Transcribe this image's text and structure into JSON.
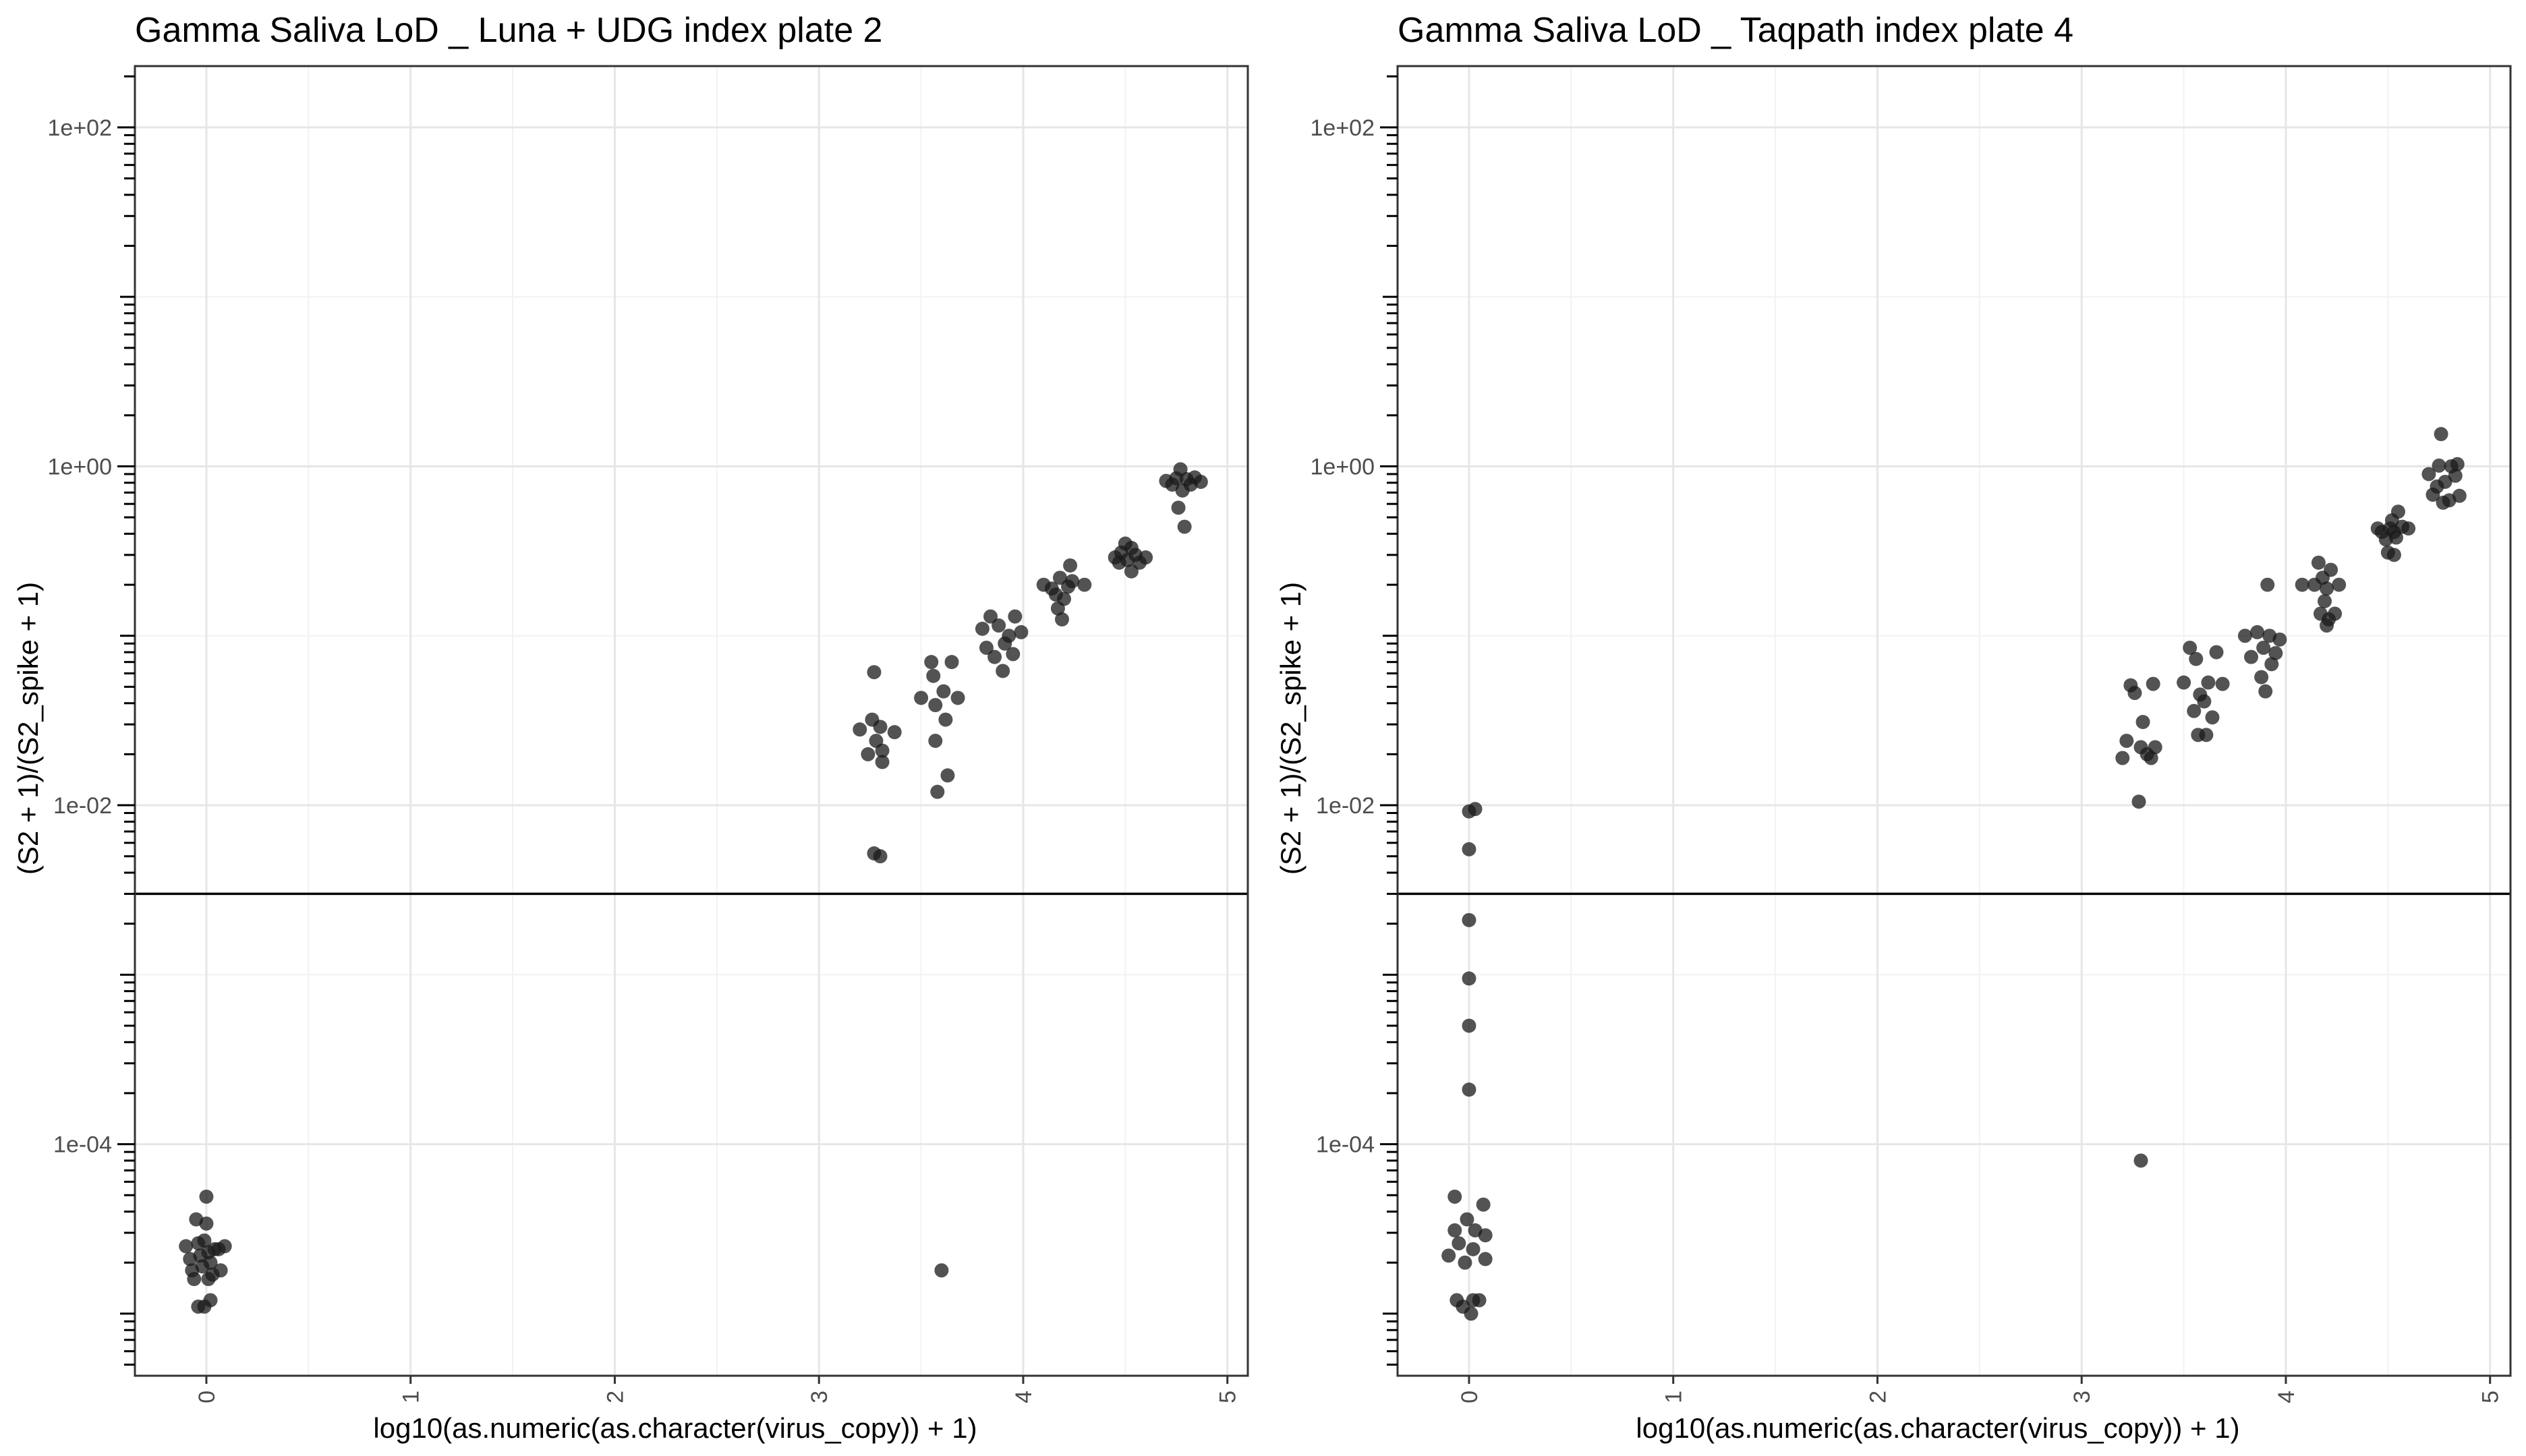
{
  "figure": {
    "background": "#ffffff"
  },
  "style": {
    "point_color": "#1a1a1a",
    "point_opacity": 0.75,
    "grid_major_color": "#e6e6e6",
    "grid_minor_color": "#f2f2f2",
    "panel_border_color": "#333333",
    "hline_color": "#000000"
  },
  "chart_data": [
    {
      "type": "scatter",
      "title": "Gamma Saliva LoD _ Luna + UDG index plate 2",
      "xlabel": "log10(as.numeric(as.character(virus_copy)) + 1)",
      "ylabel": "(S2 + 1)/(S2_spike + 1)",
      "xlim": [
        -0.35,
        5.1
      ],
      "ylim": [
        4.3e-06,
        230
      ],
      "y_scale": "log10",
      "x_ticks": [
        0,
        1,
        2,
        3,
        4,
        5
      ],
      "x_tick_labels": [
        "0",
        "1",
        "2",
        "3",
        "4",
        "5"
      ],
      "y_ticks": [
        0.0001,
        0.01,
        1,
        100
      ],
      "y_tick_labels": [
        "1e-04",
        "1e-02",
        "1e+00",
        "1e+02"
      ],
      "hline": 0.003,
      "grid": true,
      "points": [
        {
          "x": -0.1,
          "y": 2.5e-05
        },
        {
          "x": -0.08,
          "y": 2.1e-05
        },
        {
          "x": -0.07,
          "y": 1.8e-05
        },
        {
          "x": -0.06,
          "y": 1.6e-05
        },
        {
          "x": -0.05,
          "y": 3.6e-05
        },
        {
          "x": -0.04,
          "y": 2.6e-05
        },
        {
          "x": -0.04,
          "y": 1.1e-05
        },
        {
          "x": -0.03,
          "y": 2.2e-05
        },
        {
          "x": -0.02,
          "y": 1.9e-05
        },
        {
          "x": -0.01,
          "y": 2.7e-05
        },
        {
          "x": -0.01,
          "y": 1.1e-05
        },
        {
          "x": 0.0,
          "y": 4.9e-05
        },
        {
          "x": 0.0,
          "y": 3.4e-05
        },
        {
          "x": 0.01,
          "y": 2.3e-05
        },
        {
          "x": 0.01,
          "y": 1.6e-05
        },
        {
          "x": 0.02,
          "y": 2e-05
        },
        {
          "x": 0.02,
          "y": 1.2e-05
        },
        {
          "x": 0.03,
          "y": 1.7e-05
        },
        {
          "x": 0.04,
          "y": 2.4e-05
        },
        {
          "x": 0.06,
          "y": 2.4e-05
        },
        {
          "x": 0.07,
          "y": 1.8e-05
        },
        {
          "x": 0.09,
          "y": 2.5e-05
        },
        {
          "x": 3.2,
          "y": 0.028
        },
        {
          "x": 3.24,
          "y": 0.02
        },
        {
          "x": 3.26,
          "y": 0.032
        },
        {
          "x": 3.27,
          "y": 0.061
        },
        {
          "x": 3.28,
          "y": 0.024
        },
        {
          "x": 3.3,
          "y": 0.029
        },
        {
          "x": 3.31,
          "y": 0.018
        },
        {
          "x": 3.31,
          "y": 0.021
        },
        {
          "x": 3.37,
          "y": 0.027
        },
        {
          "x": 3.27,
          "y": 0.0052
        },
        {
          "x": 3.3,
          "y": 0.005
        },
        {
          "x": 3.5,
          "y": 0.043
        },
        {
          "x": 3.55,
          "y": 0.07
        },
        {
          "x": 3.56,
          "y": 0.058
        },
        {
          "x": 3.57,
          "y": 0.039
        },
        {
          "x": 3.57,
          "y": 0.024
        },
        {
          "x": 3.58,
          "y": 0.012
        },
        {
          "x": 3.61,
          "y": 0.047
        },
        {
          "x": 3.62,
          "y": 0.032
        },
        {
          "x": 3.63,
          "y": 0.015
        },
        {
          "x": 3.65,
          "y": 0.07
        },
        {
          "x": 3.68,
          "y": 0.043
        },
        {
          "x": 3.6,
          "y": 1.8e-05
        },
        {
          "x": 3.8,
          "y": 0.11
        },
        {
          "x": 3.82,
          "y": 0.085
        },
        {
          "x": 3.84,
          "y": 0.13
        },
        {
          "x": 3.86,
          "y": 0.075
        },
        {
          "x": 3.88,
          "y": 0.115
        },
        {
          "x": 3.9,
          "y": 0.062
        },
        {
          "x": 3.91,
          "y": 0.09
        },
        {
          "x": 3.93,
          "y": 0.1
        },
        {
          "x": 3.95,
          "y": 0.078
        },
        {
          "x": 3.96,
          "y": 0.13
        },
        {
          "x": 3.99,
          "y": 0.105
        },
        {
          "x": 4.1,
          "y": 0.2
        },
        {
          "x": 4.14,
          "y": 0.19
        },
        {
          "x": 4.16,
          "y": 0.175
        },
        {
          "x": 4.17,
          "y": 0.145
        },
        {
          "x": 4.18,
          "y": 0.22
        },
        {
          "x": 4.19,
          "y": 0.125
        },
        {
          "x": 4.2,
          "y": 0.165
        },
        {
          "x": 4.22,
          "y": 0.195
        },
        {
          "x": 4.23,
          "y": 0.26
        },
        {
          "x": 4.24,
          "y": 0.21
        },
        {
          "x": 4.3,
          "y": 0.2
        },
        {
          "x": 4.45,
          "y": 0.29
        },
        {
          "x": 4.47,
          "y": 0.27
        },
        {
          "x": 4.48,
          "y": 0.31
        },
        {
          "x": 4.5,
          "y": 0.35
        },
        {
          "x": 4.51,
          "y": 0.28
        },
        {
          "x": 4.53,
          "y": 0.33
        },
        {
          "x": 4.53,
          "y": 0.24
        },
        {
          "x": 4.55,
          "y": 0.3
        },
        {
          "x": 4.57,
          "y": 0.27
        },
        {
          "x": 4.6,
          "y": 0.29
        },
        {
          "x": 4.7,
          "y": 0.82
        },
        {
          "x": 4.73,
          "y": 0.78
        },
        {
          "x": 4.75,
          "y": 0.85
        },
        {
          "x": 4.76,
          "y": 0.57
        },
        {
          "x": 4.77,
          "y": 0.96
        },
        {
          "x": 4.78,
          "y": 0.72
        },
        {
          "x": 4.79,
          "y": 0.44
        },
        {
          "x": 4.8,
          "y": 0.84
        },
        {
          "x": 4.82,
          "y": 0.78
        },
        {
          "x": 4.84,
          "y": 0.86
        },
        {
          "x": 4.87,
          "y": 0.81
        }
      ]
    },
    {
      "type": "scatter",
      "title": "Gamma Saliva LoD _ Taqpath index plate 4",
      "xlabel": "log10(as.numeric(as.character(virus_copy)) + 1)",
      "ylabel": "(S2 + 1)/(S2_spike + 1)",
      "xlim": [
        -0.35,
        5.1
      ],
      "ylim": [
        4.3e-06,
        230
      ],
      "y_scale": "log10",
      "x_ticks": [
        0,
        1,
        2,
        3,
        4,
        5
      ],
      "x_tick_labels": [
        "0",
        "1",
        "2",
        "3",
        "4",
        "5"
      ],
      "y_ticks": [
        0.0001,
        0.01,
        1,
        100
      ],
      "y_tick_labels": [
        "1e-04",
        "1e-02",
        "1e+00",
        "1e+02"
      ],
      "hline": 0.003,
      "grid": true,
      "points": [
        {
          "x": -0.1,
          "y": 2.2e-05
        },
        {
          "x": -0.07,
          "y": 4.9e-05
        },
        {
          "x": -0.07,
          "y": 3.1e-05
        },
        {
          "x": -0.06,
          "y": 1.2e-05
        },
        {
          "x": -0.05,
          "y": 2.6e-05
        },
        {
          "x": -0.03,
          "y": 1.1e-05
        },
        {
          "x": -0.02,
          "y": 2e-05
        },
        {
          "x": -0.01,
          "y": 3.6e-05
        },
        {
          "x": 0.0,
          "y": 0.0092
        },
        {
          "x": 0.0,
          "y": 0.0055
        },
        {
          "x": 0.0,
          "y": 0.0021
        },
        {
          "x": 0.0,
          "y": 0.00095
        },
        {
          "x": 0.0,
          "y": 0.0005
        },
        {
          "x": 0.0,
          "y": 0.00021
        },
        {
          "x": 0.01,
          "y": 1e-05
        },
        {
          "x": 0.02,
          "y": 2.4e-05
        },
        {
          "x": 0.02,
          "y": 1.2e-05
        },
        {
          "x": 0.03,
          "y": 0.0095
        },
        {
          "x": 0.03,
          "y": 3.1e-05
        },
        {
          "x": 0.05,
          "y": 1.2e-05
        },
        {
          "x": 0.07,
          "y": 4.4e-05
        },
        {
          "x": 0.08,
          "y": 2.1e-05
        },
        {
          "x": 0.08,
          "y": 2.9e-05
        },
        {
          "x": 3.2,
          "y": 0.019
        },
        {
          "x": 3.22,
          "y": 0.024
        },
        {
          "x": 3.24,
          "y": 0.051
        },
        {
          "x": 3.26,
          "y": 0.046
        },
        {
          "x": 3.28,
          "y": 0.0105
        },
        {
          "x": 3.29,
          "y": 0.022
        },
        {
          "x": 3.3,
          "y": 0.031
        },
        {
          "x": 3.32,
          "y": 0.02
        },
        {
          "x": 3.34,
          "y": 0.019
        },
        {
          "x": 3.35,
          "y": 0.052
        },
        {
          "x": 3.36,
          "y": 0.022
        },
        {
          "x": 3.29,
          "y": 8e-05
        },
        {
          "x": 3.5,
          "y": 0.053
        },
        {
          "x": 3.53,
          "y": 0.085
        },
        {
          "x": 3.55,
          "y": 0.036
        },
        {
          "x": 3.56,
          "y": 0.073
        },
        {
          "x": 3.57,
          "y": 0.026
        },
        {
          "x": 3.58,
          "y": 0.045
        },
        {
          "x": 3.6,
          "y": 0.041
        },
        {
          "x": 3.61,
          "y": 0.026
        },
        {
          "x": 3.62,
          "y": 0.053
        },
        {
          "x": 3.64,
          "y": 0.033
        },
        {
          "x": 3.66,
          "y": 0.08
        },
        {
          "x": 3.69,
          "y": 0.052
        },
        {
          "x": 3.8,
          "y": 0.1
        },
        {
          "x": 3.83,
          "y": 0.075
        },
        {
          "x": 3.86,
          "y": 0.105
        },
        {
          "x": 3.88,
          "y": 0.057
        },
        {
          "x": 3.89,
          "y": 0.085
        },
        {
          "x": 3.9,
          "y": 0.047
        },
        {
          "x": 3.91,
          "y": 0.2
        },
        {
          "x": 3.92,
          "y": 0.1
        },
        {
          "x": 3.93,
          "y": 0.068
        },
        {
          "x": 3.95,
          "y": 0.079
        },
        {
          "x": 3.97,
          "y": 0.095
        },
        {
          "x": 4.08,
          "y": 0.2
        },
        {
          "x": 4.14,
          "y": 0.2
        },
        {
          "x": 4.16,
          "y": 0.27
        },
        {
          "x": 4.17,
          "y": 0.135
        },
        {
          "x": 4.18,
          "y": 0.22
        },
        {
          "x": 4.19,
          "y": 0.16
        },
        {
          "x": 4.2,
          "y": 0.115
        },
        {
          "x": 4.2,
          "y": 0.19
        },
        {
          "x": 4.21,
          "y": 0.125
        },
        {
          "x": 4.22,
          "y": 0.245
        },
        {
          "x": 4.24,
          "y": 0.135
        },
        {
          "x": 4.26,
          "y": 0.2
        },
        {
          "x": 4.45,
          "y": 0.43
        },
        {
          "x": 4.47,
          "y": 0.41
        },
        {
          "x": 4.49,
          "y": 0.37
        },
        {
          "x": 4.5,
          "y": 0.31
        },
        {
          "x": 4.51,
          "y": 0.43
        },
        {
          "x": 4.52,
          "y": 0.48
        },
        {
          "x": 4.53,
          "y": 0.41
        },
        {
          "x": 4.53,
          "y": 0.3
        },
        {
          "x": 4.54,
          "y": 0.38
        },
        {
          "x": 4.55,
          "y": 0.54
        },
        {
          "x": 4.57,
          "y": 0.44
        },
        {
          "x": 4.6,
          "y": 0.43
        },
        {
          "x": 4.7,
          "y": 0.9
        },
        {
          "x": 4.72,
          "y": 0.68
        },
        {
          "x": 4.74,
          "y": 0.76
        },
        {
          "x": 4.75,
          "y": 1.01
        },
        {
          "x": 4.76,
          "y": 1.55
        },
        {
          "x": 4.77,
          "y": 0.61
        },
        {
          "x": 4.78,
          "y": 0.81
        },
        {
          "x": 4.8,
          "y": 0.63
        },
        {
          "x": 4.81,
          "y": 1.0
        },
        {
          "x": 4.83,
          "y": 0.88
        },
        {
          "x": 4.84,
          "y": 1.03
        },
        {
          "x": 4.85,
          "y": 0.67
        }
      ]
    }
  ]
}
